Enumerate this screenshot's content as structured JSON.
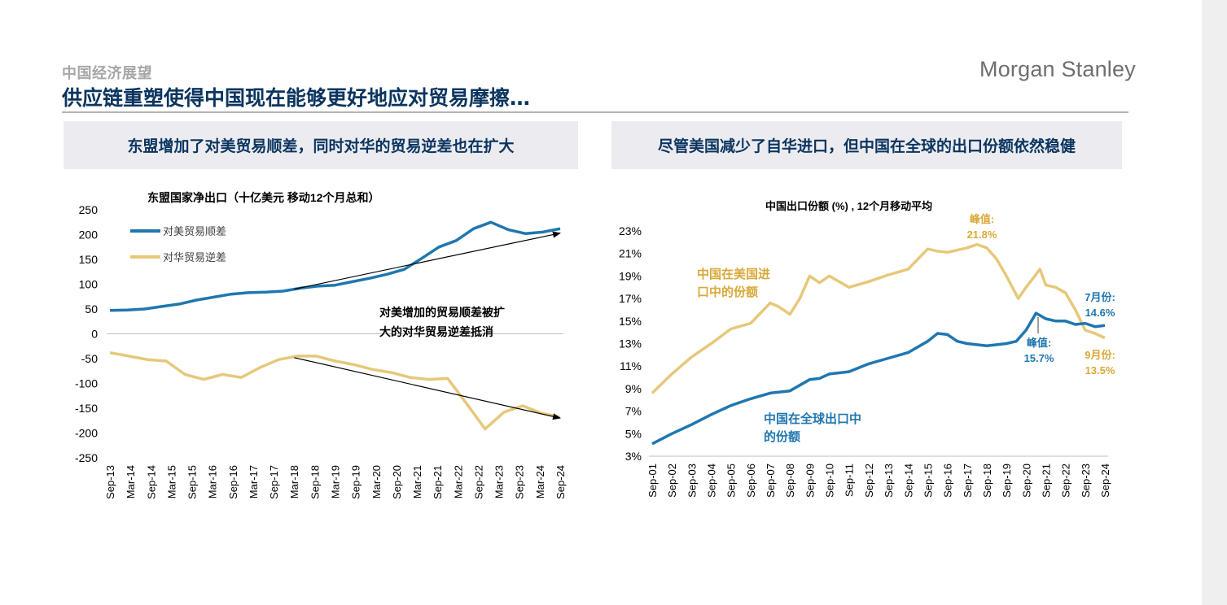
{
  "header": {
    "kicker": "中国经济展望",
    "title": "供应链重塑使得中国现在能够更好地应对贸易摩擦…",
    "brand": "Morgan Stanley"
  },
  "panels": {
    "left_heading": "东盟增加了对美贸易顺差，同时对华的贸易逆差也在扩大",
    "right_heading": "尽管美国减少了自华进口，但中国在全球的出口份额依然稳健"
  },
  "colors": {
    "blue": "#1f77b0",
    "gold": "#e6c87a",
    "gold_text": "#d9a93a",
    "navy": "#0b3560"
  },
  "chart_data": [
    {
      "type": "line",
      "title": "东盟国家净出口（十亿美元 移动12个月总和）",
      "x_ticks": [
        "Sep-13",
        "Mar-14",
        "Sep-14",
        "Mar-15",
        "Sep-15",
        "Mar-16",
        "Sep-16",
        "Mar-17",
        "Sep-17",
        "Mar-18",
        "Sep-18",
        "Mar-19",
        "Sep-19",
        "Mar-20",
        "Sep-20",
        "Mar-21",
        "Sep-21",
        "Mar-22",
        "Sep-22",
        "Mar-23",
        "Sep-23",
        "Mar-24",
        "Sep-24"
      ],
      "y_ticks": [
        "250",
        "200",
        "150",
        "100",
        "50",
        "0",
        "-50",
        "-100",
        "-150",
        "-200",
        "-250"
      ],
      "ylim": [
        -250,
        250
      ],
      "series": [
        {
          "name": "对美贸易顺差",
          "color": "#1f77b0",
          "values": [
            47,
            48,
            50,
            55,
            60,
            68,
            74,
            80,
            83,
            84,
            86,
            92,
            96,
            98,
            105,
            112,
            120,
            130,
            152,
            175,
            188,
            212,
            225,
            210,
            202,
            205,
            212
          ]
        },
        {
          "name": "对华贸易逆差",
          "color": "#e6c87a",
          "values": [
            -38,
            -45,
            -52,
            -55,
            -82,
            -92,
            -82,
            -88,
            -68,
            -52,
            -45,
            -45,
            -55,
            -62,
            -72,
            -78,
            -88,
            -92,
            -90,
            -140,
            -192,
            -158,
            -145,
            -160,
            -168
          ]
        }
      ],
      "annotation": "对美增加的贸易顺差被扩大的对华贸易逆差抵消",
      "arrows": [
        {
          "from": [
            "Mar-18",
            90
          ],
          "to": [
            "Sep-24",
            203
          ]
        },
        {
          "from": [
            "Mar-18",
            -48
          ],
          "to": [
            "Sep-24",
            -170
          ]
        }
      ]
    },
    {
      "type": "line",
      "title": "中国出口份额 (%) , 12个月移动平均",
      "x_ticks": [
        "Sep-01",
        "Sep-02",
        "Sep-03",
        "Sep-04",
        "Sep-05",
        "Sep-06",
        "Sep-07",
        "Sep-08",
        "Sep-09",
        "Sep-10",
        "Sep-11",
        "Sep-12",
        "Sep-13",
        "Sep-14",
        "Sep-15",
        "Sep-16",
        "Sep-17",
        "Sep-18",
        "Sep-19",
        "Sep-20",
        "Sep-21",
        "Sep-22",
        "Sep-23",
        "Sep-24"
      ],
      "y_ticks": [
        "23%",
        "21%",
        "19%",
        "17%",
        "15%",
        "13%",
        "11%",
        "9%",
        "7%",
        "5%",
        "3%"
      ],
      "ylim": [
        3,
        23
      ],
      "series": [
        {
          "name": "中国在美国进口中的份额",
          "color": "#e6c87a",
          "values": [
            [
              0,
              8.6
            ],
            [
              1,
              10.3
            ],
            [
              2,
              11.8
            ],
            [
              3,
              13.0
            ],
            [
              4,
              14.3
            ],
            [
              5,
              14.8
            ],
            [
              6,
              16.6
            ],
            [
              6.4,
              16.3
            ],
            [
              7,
              15.6
            ],
            [
              7.5,
              17.0
            ],
            [
              8,
              19.0
            ],
            [
              8.5,
              18.4
            ],
            [
              9,
              19.0
            ],
            [
              10,
              18.0
            ],
            [
              11,
              18.5
            ],
            [
              12,
              19.1
            ],
            [
              13,
              19.6
            ],
            [
              14,
              21.4
            ],
            [
              14.5,
              21.2
            ],
            [
              15,
              21.1
            ],
            [
              16,
              21.5
            ],
            [
              16.5,
              21.8
            ],
            [
              17,
              21.5
            ],
            [
              17.5,
              20.5
            ],
            [
              18,
              19.0
            ],
            [
              18.6,
              17.0
            ],
            [
              19,
              18.0
            ],
            [
              19.7,
              19.6
            ],
            [
              20,
              18.2
            ],
            [
              20.5,
              18.0
            ],
            [
              21,
              17.5
            ],
            [
              21.5,
              16.0
            ],
            [
              22,
              14.2
            ],
            [
              22.5,
              13.9
            ],
            [
              23,
              13.5
            ]
          ]
        },
        {
          "name": "中国在全球出口中的份额",
          "color": "#1f77b0",
          "values": [
            [
              0,
              4.1
            ],
            [
              1,
              5.0
            ],
            [
              2,
              5.8
            ],
            [
              3,
              6.7
            ],
            [
              4,
              7.5
            ],
            [
              5,
              8.1
            ],
            [
              6,
              8.6
            ],
            [
              7,
              8.8
            ],
            [
              8,
              9.8
            ],
            [
              8.5,
              9.9
            ],
            [
              9,
              10.3
            ],
            [
              10,
              10.5
            ],
            [
              11,
              11.2
            ],
            [
              12,
              11.7
            ],
            [
              13,
              12.2
            ],
            [
              14,
              13.2
            ],
            [
              14.5,
              13.9
            ],
            [
              15,
              13.8
            ],
            [
              15.5,
              13.2
            ],
            [
              16,
              13.0
            ],
            [
              17,
              12.8
            ],
            [
              18,
              13.0
            ],
            [
              18.5,
              13.2
            ],
            [
              19,
              14.2
            ],
            [
              19.5,
              15.7
            ],
            [
              20,
              15.2
            ],
            [
              20.5,
              15.0
            ],
            [
              21,
              15.0
            ],
            [
              21.5,
              14.7
            ],
            [
              22,
              14.8
            ],
            [
              22.5,
              14.5
            ],
            [
              23,
              14.6
            ]
          ]
        }
      ],
      "labels": {
        "us_import_share": "中国在美国进口中的份额",
        "global_export_share": "中国在全球出口中的份额",
        "peak_us_title": "峰值:",
        "peak_us_value": "21.8%",
        "peak_global_title": "峰值:",
        "peak_global_value": "15.7%",
        "jul_title": "7月份:",
        "jul_value": "14.6%",
        "sep_title": "9月份:",
        "sep_value": "13.5%"
      }
    }
  ]
}
